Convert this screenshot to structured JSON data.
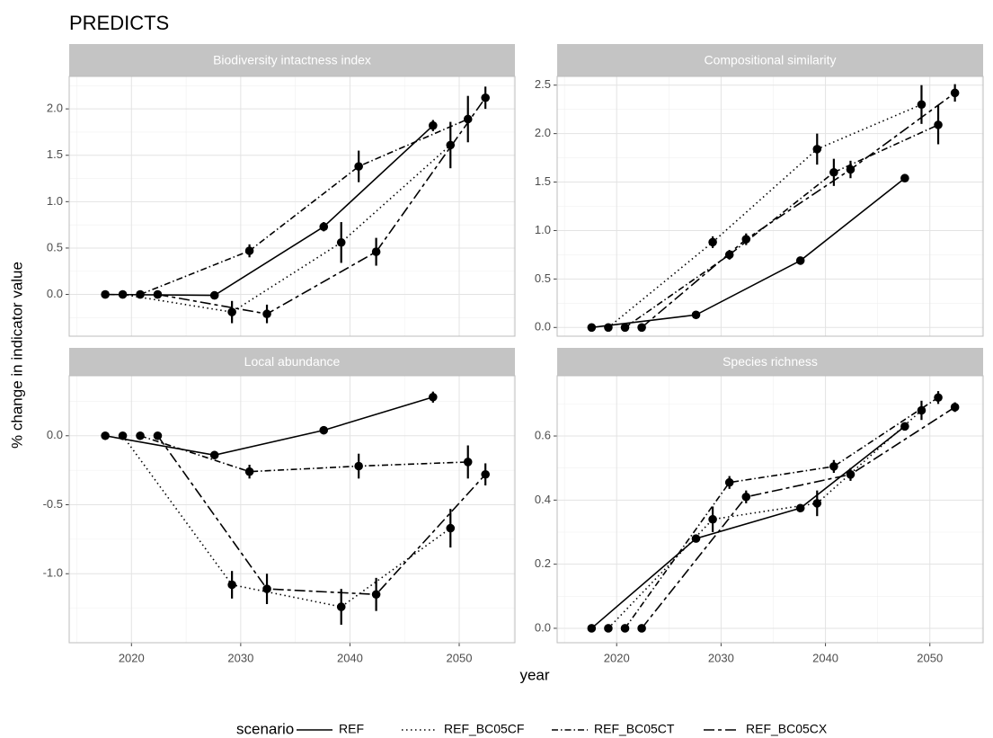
{
  "title": "PREDICTS",
  "x_label": "year",
  "y_label": "% change in indicator value",
  "legend_title": "scenario",
  "chart_data": [
    {
      "type": "line",
      "title": "Biodiversity intactness index",
      "x": [
        2020,
        2030,
        2040,
        2050
      ],
      "xlim": [
        2014.3,
        2055.1
      ],
      "xticks": [
        2020,
        2030,
        2040,
        2050
      ],
      "ylim": [
        -0.45,
        2.35
      ],
      "yticks": [
        {
          "value": 0,
          "label": "0.0"
        },
        0.5,
        {
          "value": 1,
          "label": "1.0"
        },
        1.5,
        {
          "value": 2,
          "label": "2.0"
        }
      ],
      "series": [
        {
          "name": "REF",
          "color": "#000000",
          "dash": "solid",
          "values": [
            0,
            -0.01,
            0.73,
            1.82
          ],
          "errors": [
            0,
            0.01,
            0.05,
            0.06
          ]
        },
        {
          "name": "REF_BC05CF",
          "color": "#000000",
          "dash": "dotted",
          "values": [
            0,
            -0.19,
            0.56,
            1.61
          ],
          "errors": [
            0,
            0.12,
            0.22,
            0.25
          ]
        },
        {
          "name": "REF_BC05CT",
          "color": "#000000",
          "dash": "dotdash",
          "values": [
            0,
            0.47,
            1.38,
            1.89
          ],
          "errors": [
            0,
            0.07,
            0.17,
            0.25
          ]
        },
        {
          "name": "REF_BC05CX",
          "color": "#000000",
          "dash": "twodash",
          "values": [
            0,
            -0.21,
            0.46,
            2.12
          ],
          "errors": [
            0,
            0.1,
            0.15,
            0.12
          ]
        }
      ]
    },
    {
      "type": "line",
      "title": "Compositional similarity",
      "x": [
        2020,
        2030,
        2040,
        2050
      ],
      "xlim": [
        2014.3,
        2055.1
      ],
      "xticks": [
        2020,
        2030,
        2040,
        2050
      ],
      "ylim": [
        -0.09,
        2.59
      ],
      "yticks": [
        {
          "value": 0,
          "label": "0.0"
        },
        0.5,
        {
          "value": 1,
          "label": "1.0"
        },
        1.5,
        {
          "value": 2,
          "label": "2.0"
        },
        2.5
      ],
      "series": [
        {
          "name": "REF",
          "color": "#000000",
          "dash": "solid",
          "values": [
            0,
            0.13,
            0.69,
            1.54
          ],
          "errors": [
            0,
            0.02,
            0.02,
            0.02
          ]
        },
        {
          "name": "REF_BC05CF",
          "color": "#000000",
          "dash": "dotted",
          "values": [
            0,
            0.88,
            1.84,
            2.3
          ],
          "errors": [
            0,
            0.06,
            0.16,
            0.2
          ]
        },
        {
          "name": "REF_BC05CT",
          "color": "#000000",
          "dash": "dotdash",
          "values": [
            0,
            0.75,
            1.6,
            2.09
          ],
          "errors": [
            0,
            0.05,
            0.14,
            0.2
          ]
        },
        {
          "name": "REF_BC05CX",
          "color": "#000000",
          "dash": "twodash",
          "values": [
            0,
            0.91,
            1.63,
            2.42
          ],
          "errors": [
            0,
            0.06,
            0.09,
            0.09
          ]
        }
      ]
    },
    {
      "type": "line",
      "title": "Local abundance",
      "x": [
        2020,
        2030,
        2040,
        2050
      ],
      "xlim": [
        2014.3,
        2055.1
      ],
      "xticks": [
        2020,
        2030,
        2040,
        2050
      ],
      "ylim": [
        -1.5,
        0.435
      ],
      "yticks": [
        {
          "value": -1,
          "label": "-1.0"
        },
        -0.5,
        {
          "value": 0,
          "label": "0.0"
        }
      ],
      "series": [
        {
          "name": "REF",
          "color": "#000000",
          "dash": "solid",
          "values": [
            0,
            -0.14,
            0.04,
            0.28
          ],
          "errors": [
            0,
            0.03,
            0.03,
            0.04
          ]
        },
        {
          "name": "REF_BC05CF",
          "color": "#000000",
          "dash": "dotted",
          "values": [
            0,
            -1.08,
            -1.24,
            -0.67
          ],
          "errors": [
            0,
            0.1,
            0.13,
            0.14
          ]
        },
        {
          "name": "REF_BC05CT",
          "color": "#000000",
          "dash": "dotdash",
          "values": [
            0,
            -0.26,
            -0.22,
            -0.19
          ],
          "errors": [
            0,
            0.05,
            0.09,
            0.12
          ]
        },
        {
          "name": "REF_BC05CX",
          "color": "#000000",
          "dash": "twodash",
          "values": [
            0,
            -1.11,
            -1.15,
            -0.28
          ],
          "errors": [
            0,
            0.11,
            0.12,
            0.08
          ]
        }
      ]
    },
    {
      "type": "line",
      "title": "Species richness",
      "x": [
        2020,
        2030,
        2040,
        2050
      ],
      "xlim": [
        2014.3,
        2055.1
      ],
      "xticks": [
        2020,
        2030,
        2040,
        2050
      ],
      "ylim": [
        -0.045,
        0.788
      ],
      "yticks": [
        {
          "value": 0,
          "label": "0.0"
        },
        0.2,
        0.4,
        0.6
      ],
      "series": [
        {
          "name": "REF",
          "color": "#000000",
          "dash": "solid",
          "values": [
            0,
            0.28,
            0.375,
            0.63
          ],
          "errors": [
            0,
            0.01,
            0.01,
            0.01
          ]
        },
        {
          "name": "REF_BC05CF",
          "color": "#000000",
          "dash": "dotted",
          "values": [
            0,
            0.34,
            0.39,
            0.68
          ],
          "errors": [
            0,
            0.04,
            0.04,
            0.03
          ]
        },
        {
          "name": "REF_BC05CT",
          "color": "#000000",
          "dash": "dotdash",
          "values": [
            0,
            0.455,
            0.505,
            0.72
          ],
          "errors": [
            0,
            0.02,
            0.02,
            0.02
          ]
        },
        {
          "name": "REF_BC05CX",
          "color": "#000000",
          "dash": "twodash",
          "values": [
            0,
            0.41,
            0.48,
            0.69
          ],
          "errors": [
            0,
            0.02,
            0.02,
            0.015
          ]
        }
      ]
    }
  ]
}
